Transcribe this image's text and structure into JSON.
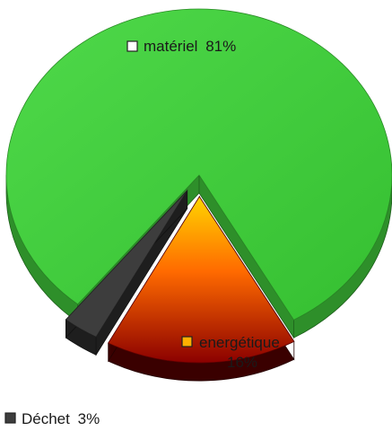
{
  "chart_data": {
    "type": "pie",
    "variant": "3d-exploded",
    "slices": [
      {
        "key": "materiel",
        "label": "matériel",
        "value": 81,
        "value_text": "81%",
        "color": "#3ec93a",
        "side_color": "#2e8f2a"
      },
      {
        "key": "energetique",
        "label": "energétique",
        "value": 16,
        "value_text": "16%",
        "color_top": "#ffd400",
        "color_mid": "#ff6a00",
        "color_bottom": "#8b0000",
        "side_color": "#3a0000"
      },
      {
        "key": "dechet",
        "label": "Déchet",
        "value": 3,
        "value_text": "3%",
        "color": "#3a3a3a",
        "side_color": "#1e1e1e"
      }
    ],
    "legend_marker": "square",
    "legend_position": "inline"
  }
}
